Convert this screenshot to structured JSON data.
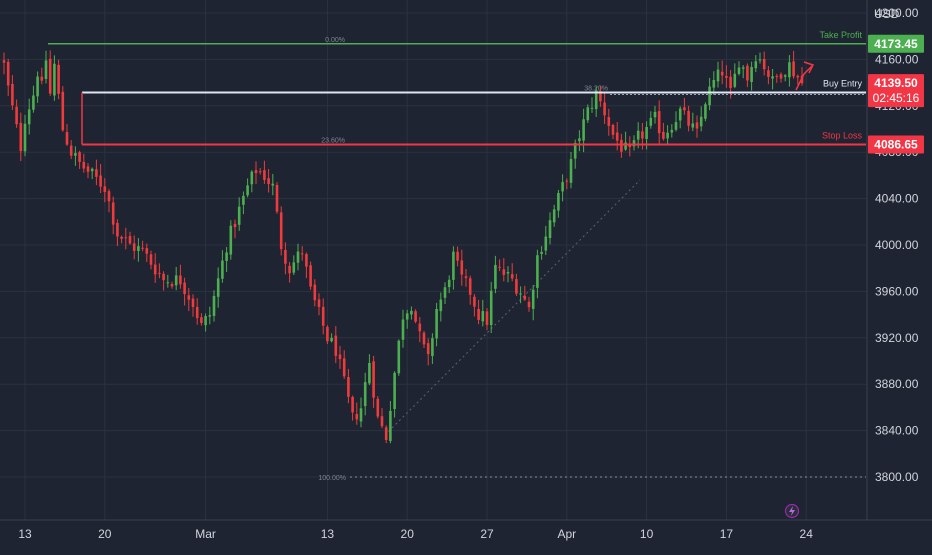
{
  "currency_label": "USD",
  "colors": {
    "background": "#1e2431",
    "grid": "#2b3240",
    "axis_text": "#d1d4dc",
    "up": "#4caf50",
    "down": "#ef3b3b",
    "take_profit": "#4caf50",
    "stop_loss": "#f23645",
    "buy_entry": "#dfe6f2",
    "price_badge": "#f23645",
    "fib_text": "#7d8594"
  },
  "chart_data": {
    "type": "candlestick",
    "y_axis": {
      "ticks": [
        4200,
        4160,
        4120,
        4080,
        4040,
        4000,
        3960,
        3920,
        3880,
        3840,
        3800
      ],
      "tick_labels": [
        "4200.00",
        "4160.00",
        "4120.00",
        "4080.00",
        "4040.00",
        "4000.00",
        "3960.00",
        "3920.00",
        "3880.00",
        "3840.00",
        "3800.00"
      ],
      "ylim": [
        3770,
        4210
      ]
    },
    "x_axis": {
      "tick_labels": [
        "13",
        "20",
        "Mar",
        "13",
        "20",
        "27",
        "Apr",
        "10",
        "17",
        "24"
      ],
      "tick_bars": [
        5,
        24,
        48,
        77,
        96,
        115,
        134,
        153,
        172,
        191
      ],
      "bar_count": 200
    },
    "levels": [
      {
        "key": "take_profit",
        "label": "Take Profit",
        "value": 4173.45,
        "badge": "4173.45"
      },
      {
        "key": "buy_entry",
        "label": "Buy Entry",
        "value": 4131.5
      },
      {
        "key": "stop_loss",
        "label": "Stop Loss",
        "value": 4086.65,
        "badge": "4086.65"
      }
    ],
    "fib_labels": [
      {
        "label": "0.00%",
        "value": 4173.45
      },
      {
        "label": "38.20%",
        "value": 4131.5
      },
      {
        "label": "23.60%",
        "value": 4086.65
      },
      {
        "label": "100.00%",
        "value": 3800
      }
    ],
    "current_price": {
      "value": 4139.5,
      "label": "4139.50",
      "countdown": "02:45:16"
    },
    "anchors": [
      [
        0,
        4155
      ],
      [
        1,
        4135
      ],
      [
        3,
        4100
      ],
      [
        4,
        4085
      ],
      [
        5,
        4110
      ],
      [
        7,
        4130
      ],
      [
        8,
        4150
      ],
      [
        9,
        4135
      ],
      [
        10,
        4160
      ],
      [
        11,
        4130
      ],
      [
        12,
        4155
      ],
      [
        14,
        4100
      ],
      [
        16,
        4080
      ],
      [
        18,
        4070
      ],
      [
        21,
        4060
      ],
      [
        24,
        4050
      ],
      [
        27,
        4010
      ],
      [
        30,
        4000
      ],
      [
        33,
        3995
      ],
      [
        36,
        3980
      ],
      [
        38,
        3970
      ],
      [
        42,
        3970
      ],
      [
        45,
        3950
      ],
      [
        47,
        3930
      ],
      [
        49,
        3940
      ],
      [
        51,
        3970
      ],
      [
        53,
        4000
      ],
      [
        56,
        4030
      ],
      [
        58,
        4050
      ],
      [
        60,
        4065
      ],
      [
        62,
        4060
      ],
      [
        64,
        4050
      ],
      [
        66,
        4000
      ],
      [
        68,
        3980
      ],
      [
        71,
        3995
      ],
      [
        73,
        3960
      ],
      [
        75,
        3940
      ],
      [
        77,
        3920
      ],
      [
        79,
        3910
      ],
      [
        81,
        3880
      ],
      [
        83,
        3850
      ],
      [
        85,
        3860
      ],
      [
        87,
        3900
      ],
      [
        89,
        3850
      ],
      [
        91,
        3835
      ],
      [
        93,
        3890
      ],
      [
        95,
        3940
      ],
      [
        97,
        3950
      ],
      [
        99,
        3920
      ],
      [
        101,
        3900
      ],
      [
        103,
        3945
      ],
      [
        105,
        3960
      ],
      [
        107,
        3990
      ],
      [
        109,
        3970
      ],
      [
        111,
        3960
      ],
      [
        113,
        3940
      ],
      [
        115,
        3935
      ],
      [
        117,
        3980
      ],
      [
        119,
        3975
      ],
      [
        121,
        3970
      ],
      [
        123,
        3960
      ],
      [
        125,
        3945
      ],
      [
        127,
        3990
      ],
      [
        129,
        4010
      ],
      [
        131,
        4030
      ],
      [
        133,
        4050
      ],
      [
        135,
        4070
      ],
      [
        137,
        4095
      ],
      [
        139,
        4115
      ],
      [
        141,
        4130
      ],
      [
        143,
        4115
      ],
      [
        145,
        4095
      ],
      [
        147,
        4085
      ],
      [
        149,
        4078
      ],
      [
        151,
        4092
      ],
      [
        153,
        4100
      ],
      [
        155,
        4108
      ],
      [
        157,
        4095
      ],
      [
        159,
        4105
      ],
      [
        161,
        4115
      ],
      [
        163,
        4105
      ],
      [
        165,
        4095
      ],
      [
        167,
        4125
      ],
      [
        169,
        4140
      ],
      [
        171,
        4150
      ],
      [
        173,
        4130
      ],
      [
        175,
        4160
      ],
      [
        177,
        4145
      ],
      [
        179,
        4165
      ],
      [
        181,
        4155
      ],
      [
        183,
        4140
      ],
      [
        185,
        4150
      ],
      [
        187,
        4155
      ],
      [
        189,
        4145
      ],
      [
        190,
        4139.5
      ]
    ]
  }
}
